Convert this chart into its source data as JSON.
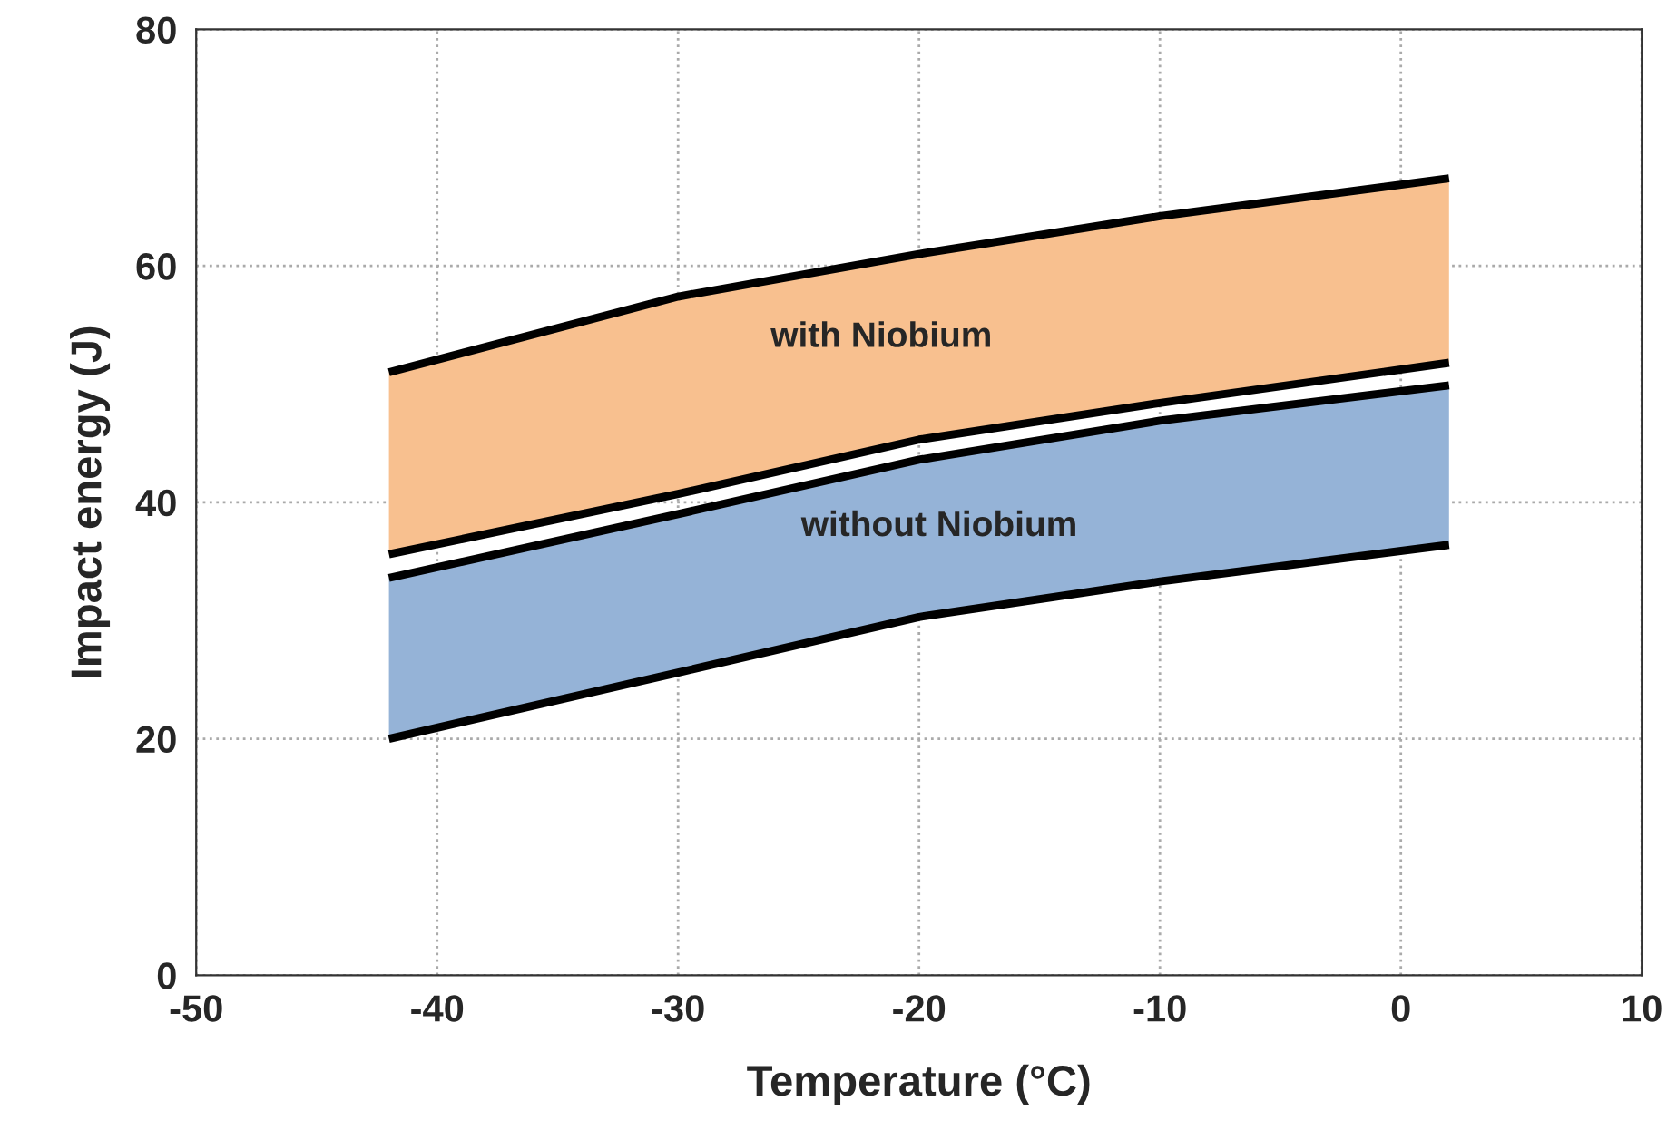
{
  "chart_data": {
    "type": "line",
    "xlabel": "Temperature (°C)",
    "ylabel": "Impact energy (J)",
    "x": [
      -42,
      -30,
      -20,
      -10,
      2
    ],
    "series": [
      {
        "type": "area",
        "color": "#f8c08f",
        "values": [
          null,
          null,
          null,
          null,
          null
        ],
        "lower": [
          35.6,
          40.7,
          45.3,
          48.4,
          51.8
        ],
        "upper": [
          51.0,
          57.4,
          61.0,
          64.2,
          67.4
        ]
      },
      {
        "type": "area",
        "color": "#95b3d7",
        "values": [
          null,
          null,
          null,
          null,
          null
        ],
        "lower": [
          20.0,
          25.6,
          30.3,
          33.3,
          36.4
        ],
        "upper": [
          33.6,
          39.0,
          43.6,
          46.9,
          49.9
        ]
      },
      {
        "color": "#000000",
        "values": [
          51.0,
          57.4,
          61.0,
          64.2,
          67.4
        ]
      },
      {
        "color": "#000000",
        "values": [
          35.6,
          40.7,
          45.3,
          48.4,
          51.8
        ]
      },
      {
        "color": "#000000",
        "values": [
          33.6,
          39.0,
          43.6,
          46.9,
          49.9
        ]
      },
      {
        "color": "#000000",
        "values": [
          20.0,
          25.6,
          30.3,
          33.3,
          36.4
        ]
      }
    ],
    "annotations": [
      "with Niobium",
      "without Niobium"
    ],
    "xlim": [
      -50,
      10
    ],
    "xticks": [
      -50,
      -40,
      -30,
      -20,
      -10,
      0,
      10
    ],
    "ylim": [
      0,
      80
    ],
    "yticks": [
      0,
      20,
      40,
      60,
      80
    ],
    "grid": true,
    "legend": false,
    "line_style": "solid"
  }
}
